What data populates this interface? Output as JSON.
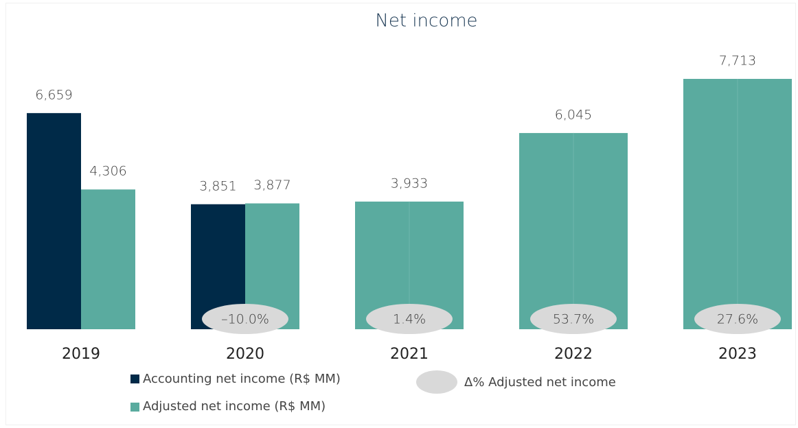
{
  "chart_data": {
    "type": "bar",
    "title": "Net income",
    "categories": [
      "2019",
      "2020",
      "2021",
      "2022",
      "2023"
    ],
    "series": [
      {
        "name": "Accounting net income (R$ MM)",
        "color": "#002a48",
        "values": [
          6659,
          3851,
          null,
          null,
          null
        ],
        "value_labels": [
          "6,659",
          "3,851",
          null,
          null,
          null
        ]
      },
      {
        "name": "Adjusted net income (R$ MM)",
        "color": "#5aab9f",
        "values": [
          4306,
          3877,
          3933,
          6045,
          7713
        ],
        "value_labels": [
          "4,306",
          "3,877",
          "3,933",
          "6,045",
          "7,713"
        ]
      },
      {
        "name": "Δ% Adjusted net income",
        "color": "#d9d9d9",
        "values": [
          null,
          -10.0,
          1.4,
          53.7,
          27.6
        ],
        "value_labels": [
          null,
          "–10.0%",
          "1.4%",
          "53.7%",
          "27.6%"
        ]
      }
    ]
  }
}
